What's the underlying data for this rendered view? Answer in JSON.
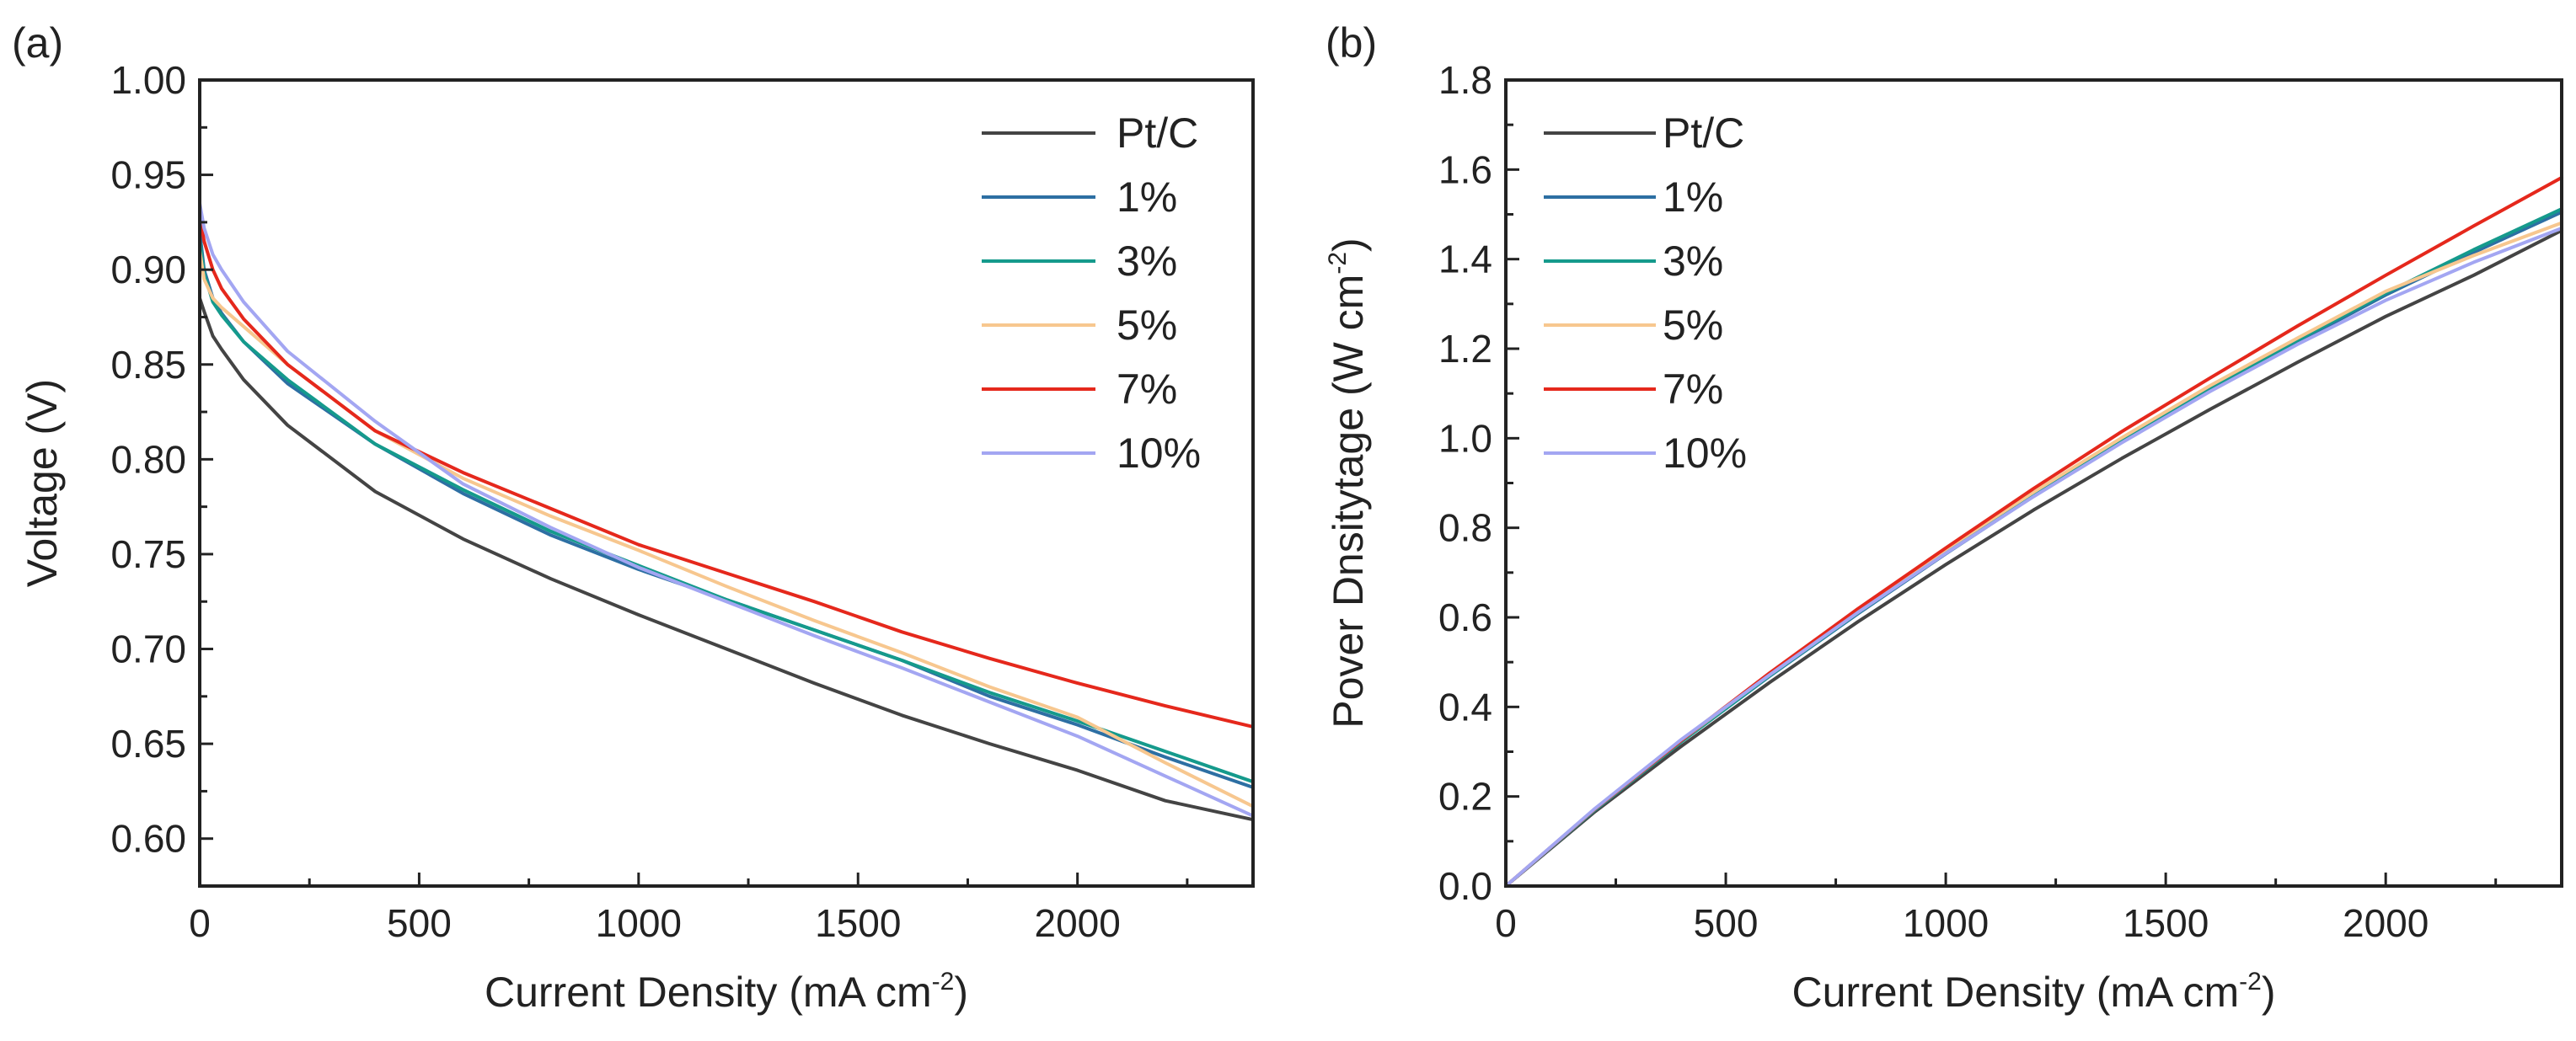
{
  "chart_data": [
    {
      "panel": "(a)",
      "type": "line",
      "xlabel": "Current Density (mA cm",
      "xlabel_sup": "-2",
      "xlabel_end": ")",
      "ylabel": "Voltage (V)",
      "xlim": [
        0,
        2400
      ],
      "ylim": [
        0.575,
        1.0
      ],
      "xticks": [
        0,
        500,
        1000,
        1500,
        2000
      ],
      "xtick_labels": [
        "0",
        "500",
        "1000",
        "1500",
        "2000"
      ],
      "yticks": [
        0.6,
        0.65,
        0.7,
        0.75,
        0.8,
        0.85,
        0.9,
        0.95,
        1.0
      ],
      "ytick_labels": [
        "0.60",
        "0.65",
        "0.70",
        "0.75",
        "0.80",
        "0.85",
        "0.90",
        "0.95",
        "1.00"
      ],
      "legend_position": "top-right",
      "series": [
        {
          "name": "Pt/C",
          "color": "#444444",
          "x": [
            0,
            10,
            30,
            50,
            100,
            200,
            400,
            600,
            800,
            1000,
            1200,
            1400,
            1600,
            1800,
            2000,
            2200,
            2400
          ],
          "y": [
            0.885,
            0.878,
            0.865,
            0.858,
            0.842,
            0.818,
            0.783,
            0.758,
            0.737,
            0.718,
            0.7,
            0.682,
            0.665,
            0.65,
            0.636,
            0.62,
            0.61
          ]
        },
        {
          "name": "1%",
          "color": "#2d6fa3",
          "x": [
            0,
            10,
            30,
            50,
            100,
            200,
            400,
            600,
            800,
            1000,
            1200,
            1400,
            1600,
            1800,
            2000,
            2200,
            2400
          ],
          "y": [
            0.92,
            0.9,
            0.885,
            0.877,
            0.862,
            0.84,
            0.808,
            0.782,
            0.76,
            0.742,
            0.726,
            0.71,
            0.694,
            0.675,
            0.66,
            0.643,
            0.627
          ]
        },
        {
          "name": "3%",
          "color": "#159a8c",
          "x": [
            0,
            10,
            30,
            50,
            100,
            200,
            400,
            600,
            800,
            1000,
            1200,
            1400,
            1600,
            1800,
            2000,
            2200,
            2400
          ],
          "y": [
            0.915,
            0.898,
            0.883,
            0.876,
            0.862,
            0.842,
            0.808,
            0.784,
            0.762,
            0.744,
            0.726,
            0.71,
            0.694,
            0.677,
            0.662,
            0.646,
            0.63
          ]
        },
        {
          "name": "5%",
          "color": "#f7c78f",
          "x": [
            0,
            10,
            30,
            50,
            100,
            200,
            400,
            600,
            800,
            1000,
            1200,
            1400,
            1600,
            1800,
            2000,
            2200,
            2400
          ],
          "y": [
            0.91,
            0.895,
            0.885,
            0.88,
            0.87,
            0.85,
            0.815,
            0.79,
            0.77,
            0.752,
            0.733,
            0.715,
            0.698,
            0.68,
            0.664,
            0.64,
            0.617
          ]
        },
        {
          "name": "7%",
          "color": "#e5281c",
          "x": [
            0,
            10,
            30,
            50,
            100,
            200,
            400,
            600,
            800,
            1000,
            1200,
            1400,
            1600,
            1800,
            2000,
            2200,
            2400
          ],
          "y": [
            0.93,
            0.915,
            0.9,
            0.89,
            0.874,
            0.85,
            0.815,
            0.793,
            0.774,
            0.755,
            0.74,
            0.725,
            0.709,
            0.695,
            0.682,
            0.67,
            0.659
          ]
        },
        {
          "name": "10%",
          "color": "#a3a6f2",
          "x": [
            0,
            10,
            30,
            50,
            100,
            200,
            400,
            600,
            800,
            1000,
            1200,
            1400,
            1600,
            1800,
            2000,
            2200,
            2400
          ],
          "y": [
            0.935,
            0.922,
            0.908,
            0.9,
            0.883,
            0.857,
            0.82,
            0.787,
            0.764,
            0.743,
            0.725,
            0.707,
            0.69,
            0.672,
            0.654,
            0.633,
            0.612
          ]
        }
      ]
    },
    {
      "panel": "(b)",
      "type": "line",
      "xlabel": "Current Density (mA cm",
      "xlabel_sup": "-2",
      "xlabel_end": ")",
      "ylabel": "Pover Dnsitytage (W cm",
      "ylabel_sup": "-2",
      "ylabel_end": ")",
      "xlim": [
        0,
        2400
      ],
      "ylim": [
        0,
        1.8
      ],
      "xticks": [
        0,
        500,
        1000,
        1500,
        2000
      ],
      "xtick_labels": [
        "0",
        "500",
        "1000",
        "1500",
        "2000"
      ],
      "yticks": [
        0,
        0.2,
        0.4,
        0.6,
        0.8,
        1.0,
        1.2,
        1.4,
        1.6,
        1.8
      ],
      "ytick_labels": [
        "0.0",
        "0.2",
        "0.4",
        "0.6",
        "0.8",
        "1.0",
        "1.2",
        "1.4",
        "1.6",
        "1.8"
      ],
      "legend_position": "top-left",
      "series": [
        {
          "name": "Pt/C",
          "color": "#444444",
          "x": [
            0,
            200,
            400,
            600,
            800,
            1000,
            1200,
            1400,
            1600,
            1800,
            2000,
            2200,
            2400
          ],
          "y": [
            0,
            0.164,
            0.313,
            0.455,
            0.59,
            0.718,
            0.84,
            0.955,
            1.064,
            1.17,
            1.272,
            1.364,
            1.464
          ]
        },
        {
          "name": "1%",
          "color": "#2d6fa3",
          "x": [
            0,
            200,
            400,
            600,
            800,
            1000,
            1200,
            1400,
            1600,
            1800,
            2000,
            2200,
            2400
          ],
          "y": [
            0,
            0.168,
            0.323,
            0.469,
            0.608,
            0.742,
            0.871,
            0.994,
            1.11,
            1.215,
            1.32,
            1.415,
            1.505
          ]
        },
        {
          "name": "3%",
          "color": "#159a8c",
          "x": [
            0,
            200,
            400,
            600,
            800,
            1000,
            1200,
            1400,
            1600,
            1800,
            2000,
            2200,
            2400
          ],
          "y": [
            0,
            0.168,
            0.323,
            0.47,
            0.61,
            0.744,
            0.871,
            0.994,
            1.11,
            1.219,
            1.324,
            1.421,
            1.512
          ]
        },
        {
          "name": "5%",
          "color": "#f7c78f",
          "x": [
            0,
            200,
            400,
            600,
            800,
            1000,
            1200,
            1400,
            1600,
            1800,
            2000,
            2200,
            2400
          ],
          "y": [
            0,
            0.17,
            0.326,
            0.474,
            0.616,
            0.752,
            0.88,
            1.001,
            1.117,
            1.224,
            1.328,
            1.408,
            1.481
          ]
        },
        {
          "name": "7%",
          "color": "#e5281c",
          "x": [
            0,
            200,
            400,
            600,
            800,
            1000,
            1200,
            1400,
            1600,
            1800,
            2000,
            2200,
            2400
          ],
          "y": [
            0,
            0.17,
            0.326,
            0.476,
            0.619,
            0.755,
            0.888,
            1.015,
            1.134,
            1.251,
            1.364,
            1.474,
            1.582
          ]
        },
        {
          "name": "10%",
          "color": "#a3a6f2",
          "x": [
            0,
            200,
            400,
            600,
            800,
            1000,
            1200,
            1400,
            1600,
            1800,
            2000,
            2200,
            2400
          ],
          "y": [
            0,
            0.171,
            0.328,
            0.472,
            0.611,
            0.743,
            0.87,
            0.99,
            1.104,
            1.21,
            1.308,
            1.393,
            1.469
          ]
        }
      ]
    }
  ]
}
